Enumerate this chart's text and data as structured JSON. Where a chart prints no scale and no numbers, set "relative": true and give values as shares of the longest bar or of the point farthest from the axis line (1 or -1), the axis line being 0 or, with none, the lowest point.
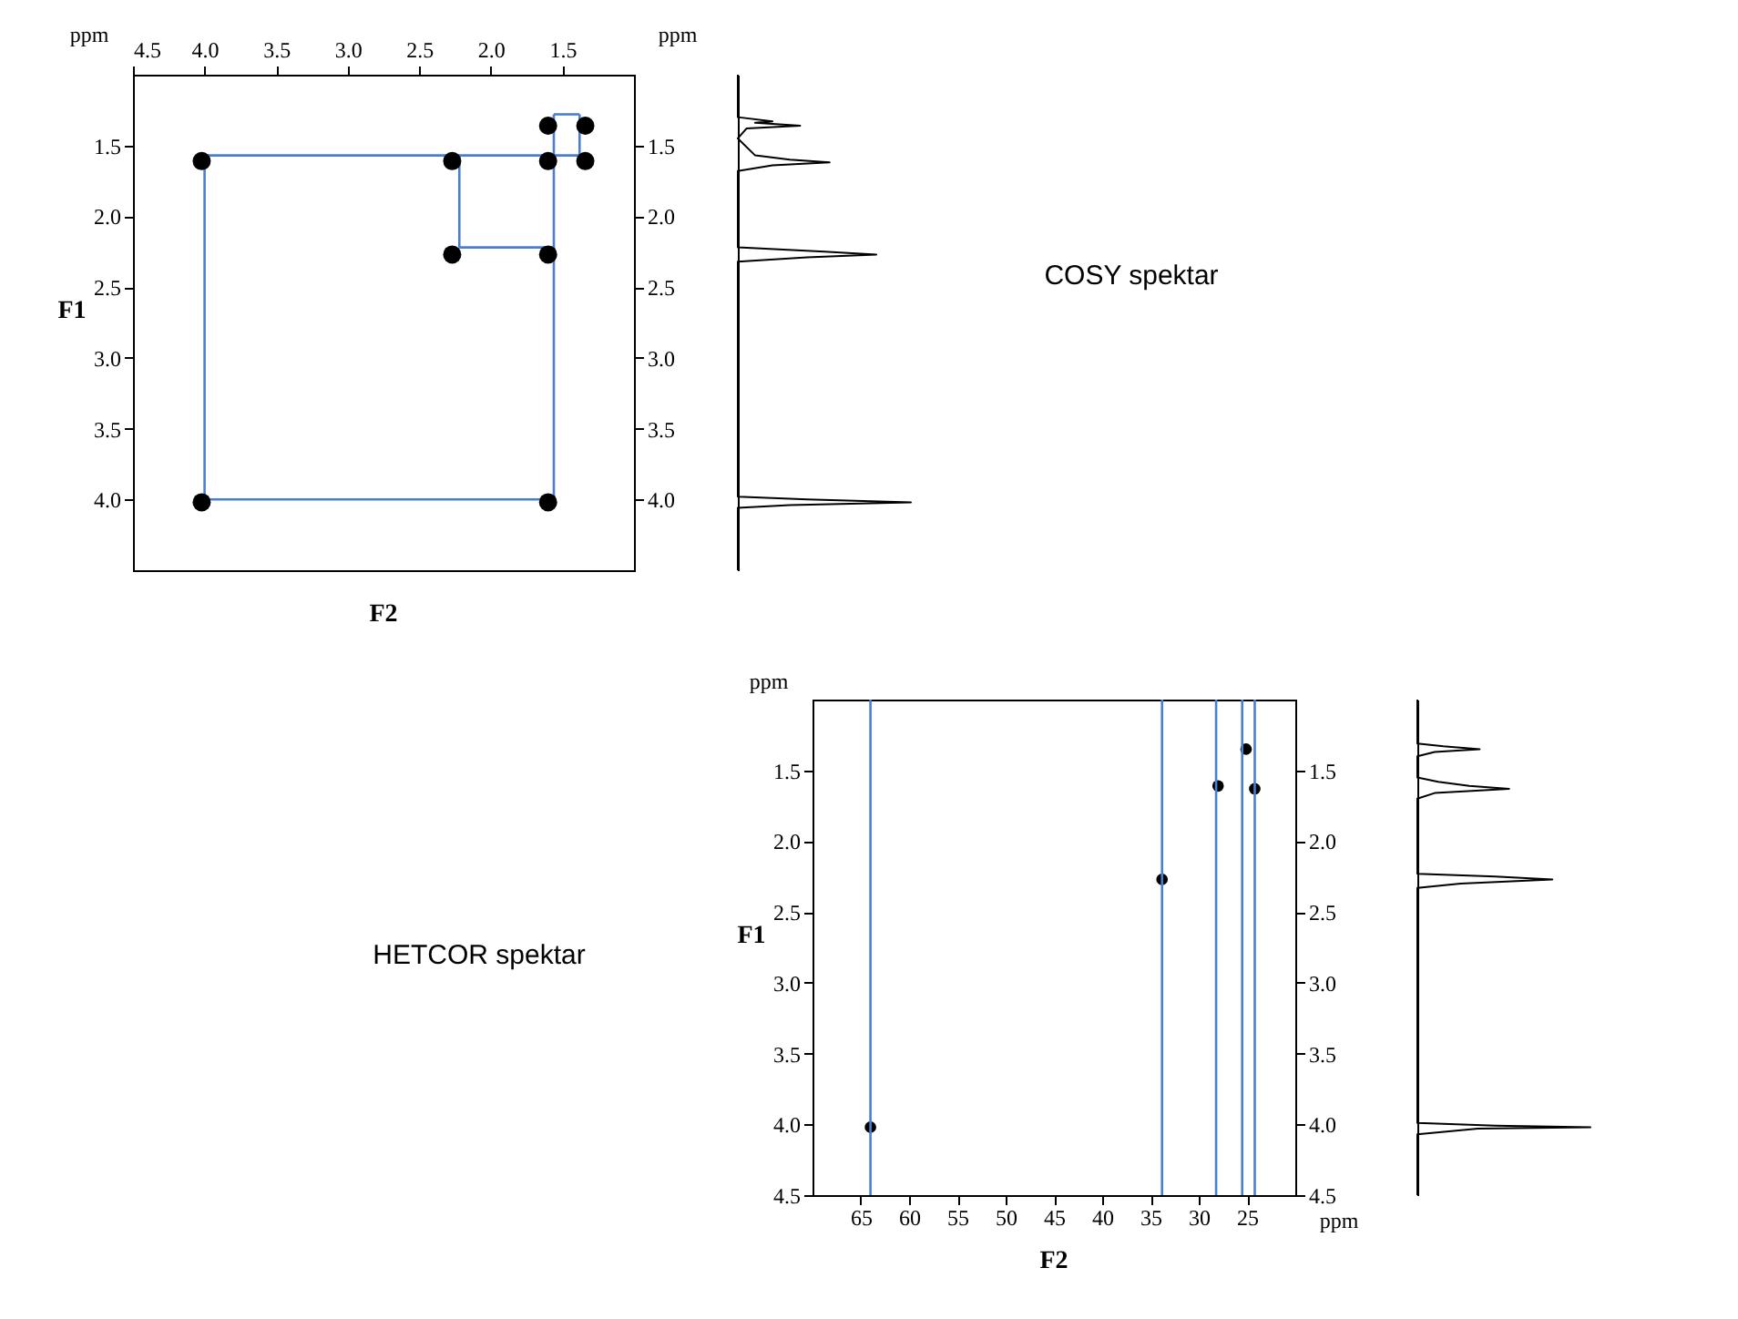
{
  "chart_data": [
    {
      "type": "scatter",
      "xlabel": "F2",
      "ylabel": "F1",
      "annotations": [
        "ppm",
        "ppm"
      ],
      "xlim": [
        4.5,
        1.0
      ],
      "xticks": [
        {
          "value": 4.5,
          "label": "4.5"
        },
        {
          "value": 4,
          "label": "4.0"
        },
        {
          "value": 3.5,
          "label": "3.5"
        },
        {
          "value": 3,
          "label": "3.0"
        },
        {
          "value": 2.5,
          "label": "2.5"
        },
        {
          "value": 2,
          "label": "2.0"
        },
        {
          "value": 1.5,
          "label": "1.5"
        }
      ],
      "ylim": [
        4.5,
        1.0
      ],
      "yticks": [
        {
          "value": 1.5,
          "label": "1.5"
        },
        {
          "value": 2,
          "label": "2.0"
        },
        {
          "value": 2.5,
          "label": "2.5"
        },
        {
          "value": 3,
          "label": "3.0"
        },
        {
          "value": 3.5,
          "label": "3.5"
        },
        {
          "value": 4,
          "label": "4.0"
        }
      ],
      "y2lim": [
        4.5,
        1.0
      ],
      "y2ticks": [
        {
          "value": 1.5,
          "label": "1.5"
        },
        {
          "value": 2,
          "label": "2.0"
        },
        {
          "value": 2.5,
          "label": "2.5"
        },
        {
          "value": 3,
          "label": "3.0"
        },
        {
          "value": 3.5,
          "label": "3.5"
        },
        {
          "value": 4,
          "label": "4.0"
        }
      ],
      "series": [
        {
          "type": "line",
          "color": "#4a7fd0",
          "x": [
            1.56,
            1.38
          ],
          "values": [
            1.28,
            1.28
          ]
        },
        {
          "type": "line",
          "color": "#4a7fd0",
          "x": [
            1.38,
            1.38
          ],
          "values": [
            1.28,
            1.57
          ]
        },
        {
          "type": "line",
          "color": "#4a7fd0",
          "x": [
            4.0,
            1.38
          ],
          "values": [
            1.57,
            1.57
          ]
        },
        {
          "type": "line",
          "color": "#4a7fd0",
          "x": [
            4.0,
            4.0
          ],
          "values": [
            1.57,
            4.0
          ]
        },
        {
          "type": "line",
          "color": "#4a7fd0",
          "x": [
            4.0,
            1.56
          ],
          "values": [
            4.0,
            4.0
          ]
        },
        {
          "type": "line",
          "color": "#4a7fd0",
          "x": [
            1.56,
            1.56
          ],
          "values": [
            1.28,
            4.0
          ]
        },
        {
          "type": "line",
          "color": "#4a7fd0",
          "x": [
            2.22,
            2.22
          ],
          "values": [
            1.57,
            2.22
          ]
        },
        {
          "type": "line",
          "color": "#4a7fd0",
          "x": [
            2.22,
            1.56
          ],
          "values": [
            2.22,
            2.22
          ]
        },
        {
          "type": "scatter",
          "marker": "circle",
          "color": "#000000",
          "x": [
            4.02,
            2.27,
            1.6,
            1.34,
            1.6,
            1.34,
            2.27,
            1.6,
            4.02,
            1.6
          ],
          "values": [
            1.61,
            1.61,
            1.61,
            1.61,
            1.36,
            1.36,
            2.27,
            2.27,
            4.02,
            4.02
          ]
        }
      ]
    },
    {
      "type": "line",
      "relative": true,
      "orientation": "horizontal",
      "tick_labels": false,
      "color": "#000000",
      "ylim": [
        4.5,
        1.0
      ],
      "x": [
        1.0,
        1.3,
        1.33,
        1.34,
        1.36,
        1.38,
        1.45,
        1.57,
        1.6,
        1.62,
        1.64,
        1.68,
        2.22,
        2.25,
        2.27,
        2.29,
        2.32,
        3.98,
        4.0,
        4.02,
        4.04,
        4.06,
        4.5
      ],
      "values": [
        0,
        0,
        0.2,
        0.1,
        0.36,
        0.05,
        0,
        0.1,
        0.3,
        0.53,
        0.2,
        0,
        0,
        0.5,
        0.8,
        0.4,
        0,
        0,
        0.4,
        1.0,
        0.3,
        0,
        0
      ]
    },
    {
      "type": "other",
      "title": "COSY spektar"
    },
    {
      "type": "other",
      "title": "HETCOR spektar"
    },
    {
      "type": "scatter",
      "xlabel": "F2",
      "ylabel": "F1",
      "annotations": [
        "ppm",
        "ppm"
      ],
      "xlim": [
        70,
        20
      ],
      "xticks": [
        65,
        60,
        55,
        50,
        45,
        40,
        35,
        30,
        25
      ],
      "ylim": [
        4.5,
        1.0
      ],
      "yticks": [
        {
          "value": 1.5,
          "label": "1.5"
        },
        {
          "value": 2,
          "label": "2.0"
        },
        {
          "value": 2.5,
          "label": "2.5"
        },
        {
          "value": 3,
          "label": "3.0"
        },
        {
          "value": 3.5,
          "label": "3.5"
        },
        {
          "value": 4,
          "label": "4.0"
        },
        {
          "value": 4.5,
          "label": "4.5"
        }
      ],
      "y2lim": [
        4.5,
        1.0
      ],
      "y2ticks": [
        {
          "value": 1.5,
          "label": "1.5"
        },
        {
          "value": 2,
          "label": "2.0"
        },
        {
          "value": 2.5,
          "label": "2.5"
        },
        {
          "value": 3,
          "label": "3.0"
        },
        {
          "value": 3.5,
          "label": "3.5"
        },
        {
          "value": 4,
          "label": "4.0"
        },
        {
          "value": 4.5,
          "label": "4.5"
        }
      ],
      "ref_lines": [
        {
          "axis": "x",
          "value": 64.0,
          "color": "#4a7fd0"
        },
        {
          "axis": "x",
          "value": 33.8,
          "color": "#4a7fd0"
        },
        {
          "axis": "x",
          "value": 28.2,
          "color": "#4a7fd0"
        },
        {
          "axis": "x",
          "value": 25.5,
          "color": "#4a7fd0"
        },
        {
          "axis": "x",
          "value": 24.2,
          "color": "#4a7fd0"
        }
      ],
      "series": [
        {
          "type": "scatter",
          "marker": "circle",
          "color": "#000000",
          "x": [
            64.0,
            33.8,
            28.0,
            25.1,
            24.2
          ],
          "values": [
            4.02,
            2.27,
            1.61,
            1.35,
            1.63
          ]
        }
      ]
    },
    {
      "type": "line",
      "relative": true,
      "orientation": "horizontal",
      "tick_labels": false,
      "color": "#000000",
      "ylim": [
        4.5,
        1.0
      ],
      "x": [
        1.0,
        1.31,
        1.33,
        1.35,
        1.37,
        1.4,
        1.55,
        1.58,
        1.61,
        1.63,
        1.66,
        1.7,
        2.23,
        2.25,
        2.27,
        2.3,
        2.33,
        3.99,
        4.01,
        4.02,
        4.03,
        4.07,
        4.5
      ],
      "values": [
        0,
        0,
        0.15,
        0.36,
        0.1,
        0,
        0,
        0.12,
        0.3,
        0.53,
        0.1,
        0,
        0,
        0.45,
        0.78,
        0.25,
        0,
        0,
        0.45,
        1.0,
        0.35,
        0,
        0
      ]
    }
  ]
}
